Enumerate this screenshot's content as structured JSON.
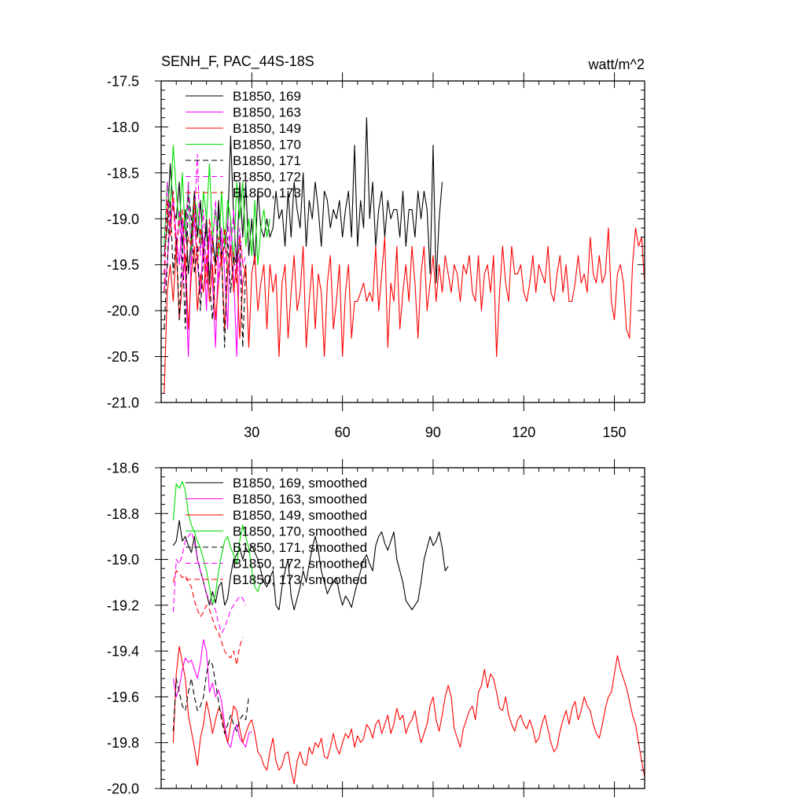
{
  "chart_data": [
    {
      "type": "line",
      "title": "SENH_F, PAC_44S-18S",
      "units": "watt/m^2",
      "xlim": [
        0,
        160
      ],
      "ylim": [
        -21.0,
        -17.5
      ],
      "x_ticks": [
        30,
        60,
        90,
        120,
        150
      ],
      "x_tick_labels": [
        "30",
        "60",
        "90",
        "120",
        "150"
      ],
      "y_ticks": [
        -17.5,
        -18.0,
        -18.5,
        -19.0,
        -19.5,
        -20.0,
        -20.5,
        -21.0
      ],
      "y_tick_labels": [
        "-17.5",
        "-18.0",
        "-18.5",
        "-19.0",
        "-19.5",
        "-20.0",
        "-20.5",
        "-21.0"
      ],
      "legend_position": "top-left",
      "series": [
        {
          "name": "B1850, 169",
          "color": "#000000",
          "dash": "solid",
          "values": [
            -19.4,
            -19.1,
            -18.4,
            -18.9,
            -19.0,
            -18.6,
            -19.3,
            -18.9,
            -19.6,
            -19.2,
            -18.7,
            -19.2,
            -18.8,
            -19.4,
            -19.0,
            -19.7,
            -19.2,
            -19.5,
            -18.8,
            -19.4,
            -19.3,
            -19.1,
            -18.1,
            -19.0,
            -19.5,
            -18.6,
            -19.2,
            -18.6,
            -19.4,
            -19.0,
            -19.5,
            -18.7,
            -19.1,
            -19.2,
            -19.0,
            -19.2,
            -19.1,
            -18.7,
            -19.0,
            -18.9,
            -19.3,
            -18.7,
            -19.2,
            -18.6,
            -18.9,
            -19.1,
            -18.5,
            -19.3,
            -18.8,
            -19.0,
            -18.6,
            -18.9,
            -19.3,
            -18.7,
            -18.8,
            -19.1,
            -18.9,
            -19.0,
            -18.8,
            -19.2,
            -18.9,
            -18.7,
            -19.2,
            -18.2,
            -19.3,
            -18.8,
            -19.1,
            -17.9,
            -19.0,
            -18.6,
            -19.3,
            -18.9,
            -18.7,
            -19.2,
            -18.8,
            -19.0,
            -18.9,
            -18.9,
            -19.2,
            -18.7,
            -19.3,
            -18.9,
            -18.9,
            -19.2,
            -18.7,
            -19.0,
            -18.7,
            -18.9,
            -19.6,
            -18.2,
            -19.7,
            -19.0,
            -18.6
          ]
        },
        {
          "name": "B1850, 163",
          "color": "#ff00ff",
          "dash": "solid",
          "values": [
            -19.8,
            -19.5,
            -19.0,
            -18.8,
            -19.2,
            -19.5,
            -19.0,
            -19.6,
            -20.5,
            -19.3,
            -19.0,
            -19.5,
            -19.8,
            -19.2,
            -20.0,
            -19.1,
            -19.7,
            -20.4,
            -19.3,
            -19.1,
            -19.6,
            -20.2,
            -19.0,
            -19.6,
            -20.5,
            -19.4,
            -19.8
          ]
        },
        {
          "name": "B1850, 149",
          "color": "#ff0000",
          "dash": "solid",
          "values": [
            -20.9,
            -19.8,
            -19.5,
            -19.9,
            -19.3,
            -20.1,
            -19.7,
            -19.4,
            -20.2,
            -19.6,
            -19.3,
            -20.0,
            -19.6,
            -19.8,
            -19.4,
            -19.9,
            -19.5,
            -20.1,
            -19.7,
            -19.4,
            -20.2,
            -19.6,
            -19.3,
            -19.8,
            -19.5,
            -20.3,
            -19.7,
            -19.5,
            -20.4,
            -19.6,
            -19.4,
            -20.0,
            -19.7,
            -19.5,
            -20.2,
            -19.5,
            -19.8,
            -19.6,
            -20.5,
            -19.7,
            -19.5,
            -20.3,
            -19.8,
            -19.4,
            -20.0,
            -19.8,
            -19.3,
            -20.4,
            -19.9,
            -19.5,
            -20.2,
            -19.6,
            -19.8,
            -20.5,
            -19.7,
            -19.4,
            -20.2,
            -19.9,
            -19.5,
            -20.5,
            -19.8,
            -19.5,
            -20.3,
            -19.9,
            -19.9,
            -19.8,
            -19.7,
            -19.9,
            -19.8,
            -19.9,
            -19.3,
            -20.0,
            -19.6,
            -19.2,
            -20.4,
            -19.7,
            -19.9,
            -19.3,
            -20.2,
            -19.8,
            -19.5,
            -19.9,
            -19.3,
            -19.7,
            -20.3,
            -19.6,
            -19.3,
            -20.0,
            -19.7,
            -19.4,
            -19.9,
            -19.5,
            -19.8,
            -19.4,
            -19.6,
            -19.8,
            -19.5,
            -19.6,
            -19.9,
            -19.5,
            -19.6,
            -19.4,
            -19.8,
            -19.9,
            -19.4,
            -20.0,
            -19.6,
            -19.5,
            -19.8,
            -19.4,
            -20.5,
            -19.8,
            -19.3,
            -19.7,
            -19.9,
            -19.3,
            -19.6,
            -19.6,
            -19.5,
            -19.8,
            -19.9,
            -19.7,
            -19.4,
            -19.8,
            -19.5,
            -19.6,
            -19.7,
            -19.3,
            -19.8,
            -19.9,
            -19.6,
            -19.4,
            -19.8,
            -19.5,
            -19.9,
            -19.9,
            -19.7,
            -19.4,
            -19.7,
            -19.6,
            -19.8,
            -19.2,
            -19.6,
            -19.7,
            -19.4,
            -19.7,
            -19.6,
            -19.1,
            -19.9,
            -20.1,
            -19.6,
            -19.5,
            -19.7,
            -20.2,
            -20.3,
            -19.5,
            -19.1,
            -19.3,
            -19.2,
            -19.7,
            -19.9,
            -19.4,
            -19.9,
            -19.8,
            -19.9,
            -19.4,
            -20.0,
            -19.4,
            -19.4,
            -19.0,
            -19.5
          ]
        },
        {
          "name": "B1850, 170",
          "color": "#00e000",
          "dash": "solid",
          "values": [
            -19.3,
            -18.6,
            -18.9,
            -18.2,
            -18.7,
            -19.1,
            -18.5,
            -19.2,
            -18.6,
            -19.4,
            -18.8,
            -18.9,
            -19.3,
            -18.7,
            -19.0,
            -18.4,
            -19.2,
            -18.9,
            -19.4,
            -18.7,
            -19.3,
            -18.8,
            -19.0,
            -19.5,
            -18.6,
            -19.0,
            -18.6,
            -19.3,
            -19.0,
            -19.4,
            -18.8,
            -19.5,
            -19.1,
            -18.9,
            -19.2,
            -19.0
          ]
        },
        {
          "name": "B1850, 171",
          "color": "#000000",
          "dash": "dash",
          "values": [
            -20.2,
            -19.5,
            -18.8,
            -19.6,
            -19.2,
            -20.1,
            -19.3,
            -20.2,
            -18.7,
            -19.0,
            -19.6,
            -19.3,
            -20.0,
            -19.4,
            -19.1,
            -19.7,
            -20.1,
            -19.5,
            -18.9,
            -19.4,
            -20.4,
            -19.2,
            -19.8,
            -19.4,
            -19.5,
            -19.2,
            -20.4,
            -19.5
          ]
        },
        {
          "name": "B1850, 172",
          "color": "#ff00ff",
          "dash": "dash",
          "values": [
            -19.6,
            -18.6,
            -19.1,
            -18.8,
            -19.4,
            -18.9,
            -19.7,
            -19.2,
            -18.6,
            -19.5,
            -19.0,
            -18.3,
            -19.4,
            -18.9,
            -19.6,
            -19.1,
            -19.3,
            -18.8,
            -19.7,
            -19.2,
            -19.5,
            -19.0,
            -19.4,
            -18.9,
            -19.6,
            -19.1,
            -19.5,
            -19.4
          ]
        },
        {
          "name": "B1850, 173",
          "color": "#ff0000",
          "dash": "dash",
          "values": [
            -19.8,
            -18.8,
            -19.2,
            -18.7,
            -19.4,
            -19.0,
            -18.9,
            -19.5,
            -19.2,
            -19.3,
            -18.8,
            -19.5,
            -19.1,
            -19.4,
            -19.7,
            -19.0,
            -19.3,
            -19.6,
            -19.2,
            -19.5,
            -19.1,
            -19.6,
            -19.3,
            -19.4,
            -19.7,
            -19.2,
            -19.5,
            -19.6
          ]
        }
      ]
    },
    {
      "type": "line",
      "xlim": [
        0,
        160
      ],
      "ylim": [
        -20.0,
        -18.6
      ],
      "x_ticks": [
        30,
        60,
        90,
        120,
        150
      ],
      "x_tick_labels": [],
      "y_ticks": [
        -18.6,
        -18.8,
        -19.0,
        -19.2,
        -19.4,
        -19.6,
        -19.8,
        -20.0
      ],
      "y_tick_labels": [
        "-18.6",
        "-18.8",
        "-19.0",
        "-19.2",
        "-19.4",
        "-19.6",
        "-19.8",
        "-20.0"
      ],
      "legend_position": "top-left",
      "series": [
        {
          "name": "B1850, 169, smoothed",
          "color": "#000000",
          "dash": "solid",
          "x_start": 4,
          "values": [
            -18.94,
            -18.92,
            -18.83,
            -18.92,
            -18.9,
            -18.94,
            -18.97,
            -18.9,
            -19.0,
            -19.05,
            -19.1,
            -19.15,
            -19.2,
            -19.14,
            -19.19,
            -19.12,
            -19.1,
            -19.2,
            -19.17,
            -19.07,
            -19.0,
            -18.98,
            -18.95,
            -19.0,
            -18.95,
            -18.97,
            -18.94,
            -18.97,
            -19.0,
            -19.05,
            -19.1,
            -19.12,
            -19.08,
            -19.05,
            -19.2,
            -19.22,
            -19.12,
            -19.05,
            -19.0,
            -19.16,
            -19.22,
            -19.17,
            -19.12,
            -19.05,
            -19.1,
            -19.02,
            -18.95,
            -18.9,
            -18.96,
            -19.05,
            -19.1,
            -19.15,
            -19.12,
            -19.1,
            -19.08,
            -19.15,
            -19.2,
            -19.16,
            -19.18,
            -19.21,
            -19.15,
            -19.1,
            -19.05,
            -19.0,
            -18.98,
            -19.02,
            -19.05,
            -18.94,
            -18.9,
            -18.88,
            -18.93,
            -18.96,
            -18.92,
            -18.88,
            -19.0,
            -19.05,
            -19.1,
            -19.18,
            -19.2,
            -19.22,
            -19.2,
            -19.18,
            -19.1,
            -19.0,
            -18.95,
            -18.9,
            -18.94,
            -18.92,
            -18.88,
            -18.95,
            -19.05,
            -19.03
          ]
        },
        {
          "name": "B1850, 163, smoothed",
          "color": "#ff00ff",
          "dash": "solid",
          "x_start": 4,
          "values": [
            -19.52,
            -19.6,
            -19.56,
            -19.48,
            -19.43,
            -19.45,
            -19.44,
            -19.48,
            -19.52,
            -19.45,
            -19.35,
            -19.4,
            -19.58,
            -19.54,
            -19.6,
            -19.57,
            -19.62,
            -19.72,
            -19.8,
            -19.82,
            -19.75,
            -19.72,
            -19.78,
            -19.8,
            -19.82,
            -19.76,
            -19.75
          ]
        },
        {
          "name": "B1850, 149, smoothed",
          "color": "#ff0000",
          "dash": "solid",
          "x_start": 4,
          "values": [
            -19.8,
            -19.5,
            -19.38,
            -19.45,
            -19.52,
            -19.68,
            -19.75,
            -19.82,
            -19.9,
            -19.78,
            -19.72,
            -19.62,
            -19.68,
            -19.76,
            -19.7,
            -19.65,
            -19.67,
            -19.75,
            -19.8,
            -19.72,
            -19.64,
            -19.66,
            -19.74,
            -19.8,
            -19.76,
            -19.72,
            -19.7,
            -19.76,
            -19.84,
            -19.86,
            -19.9,
            -19.92,
            -19.84,
            -19.78,
            -19.88,
            -19.92,
            -19.9,
            -19.85,
            -19.84,
            -19.92,
            -19.98,
            -19.88,
            -19.84,
            -19.89,
            -19.9,
            -19.82,
            -19.85,
            -19.8,
            -19.82,
            -19.78,
            -19.86,
            -19.87,
            -19.82,
            -19.76,
            -19.82,
            -19.85,
            -19.8,
            -19.76,
            -19.78,
            -19.74,
            -19.82,
            -19.77,
            -19.8,
            -19.78,
            -19.72,
            -19.74,
            -19.78,
            -19.72,
            -19.7,
            -19.76,
            -19.72,
            -19.68,
            -19.76,
            -19.72,
            -19.65,
            -19.7,
            -19.68,
            -19.76,
            -19.72,
            -19.7,
            -19.66,
            -19.74,
            -19.8,
            -19.76,
            -19.72,
            -19.64,
            -19.6,
            -19.7,
            -19.75,
            -19.68,
            -19.6,
            -19.55,
            -19.6,
            -19.74,
            -19.78,
            -19.82,
            -19.74,
            -19.7,
            -19.66,
            -19.64,
            -19.7,
            -19.58,
            -19.55,
            -19.48,
            -19.56,
            -19.5,
            -19.52,
            -19.58,
            -19.65,
            -19.66,
            -19.6,
            -19.68,
            -19.72,
            -19.75,
            -19.7,
            -19.68,
            -19.72,
            -19.74,
            -19.7,
            -19.74,
            -19.8,
            -19.78,
            -19.72,
            -19.68,
            -19.74,
            -19.8,
            -19.84,
            -19.82,
            -19.75,
            -19.7,
            -19.66,
            -19.72,
            -19.65,
            -19.62,
            -19.7,
            -19.66,
            -19.6,
            -19.64,
            -19.66,
            -19.72,
            -19.76,
            -19.78,
            -19.72,
            -19.65,
            -19.6,
            -19.58,
            -19.5,
            -19.42,
            -19.48,
            -19.52,
            -19.56,
            -19.62,
            -19.68,
            -19.72,
            -19.8,
            -19.88,
            -19.95,
            -19.98,
            -19.88,
            -19.72,
            -19.64,
            -19.56,
            -19.5,
            -19.52,
            -19.6,
            -19.62
          ]
        },
        {
          "name": "B1850, 170, smoothed",
          "color": "#00e000",
          "dash": "solid",
          "x_start": 4,
          "values": [
            -18.83,
            -18.67,
            -18.69,
            -18.66,
            -18.7,
            -18.8,
            -18.85,
            -18.88,
            -18.92,
            -18.95,
            -19.0,
            -19.05,
            -19.12,
            -19.2,
            -19.15,
            -19.05,
            -18.98,
            -18.92,
            -18.9,
            -18.95,
            -18.98,
            -19.02,
            -18.92,
            -18.85,
            -18.9,
            -18.95,
            -19.05,
            -19.12,
            -19.14,
            -19.1
          ]
        },
        {
          "name": "B1850, 171, smoothed",
          "color": "#000000",
          "dash": "dash",
          "x_start": 4,
          "values": [
            -19.75,
            -19.52,
            -19.58,
            -19.64,
            -19.66,
            -19.58,
            -19.52,
            -19.6,
            -19.66,
            -19.64,
            -19.6,
            -19.5,
            -19.44,
            -19.46,
            -19.54,
            -19.62,
            -19.7,
            -19.76,
            -19.72,
            -19.68,
            -19.72,
            -19.75,
            -19.7,
            -19.68,
            -19.7,
            -19.6
          ]
        },
        {
          "name": "B1850, 172, smoothed",
          "color": "#ff00ff",
          "dash": "dash",
          "x_start": 4,
          "values": [
            -19.23,
            -19.0,
            -19.02,
            -18.98,
            -18.92,
            -18.9,
            -18.88,
            -18.92,
            -19.0,
            -19.05,
            -19.1,
            -19.15,
            -19.18,
            -19.2,
            -19.22,
            -19.28,
            -19.32,
            -19.3,
            -19.26,
            -19.22,
            -19.2,
            -19.18,
            -19.16,
            -19.17,
            -19.2
          ]
        },
        {
          "name": "B1850, 173, smoothed",
          "color": "#ff0000",
          "dash": "dash",
          "x_start": 4,
          "values": [
            -19.1,
            -19.05,
            -19.06,
            -19.08,
            -19.07,
            -19.1,
            -19.12,
            -19.18,
            -19.22,
            -19.25,
            -19.23,
            -19.2,
            -19.22,
            -19.26,
            -19.3,
            -19.32,
            -19.36,
            -19.4,
            -19.42,
            -19.43,
            -19.4,
            -19.46,
            -19.38,
            -19.34
          ]
        }
      ]
    }
  ]
}
